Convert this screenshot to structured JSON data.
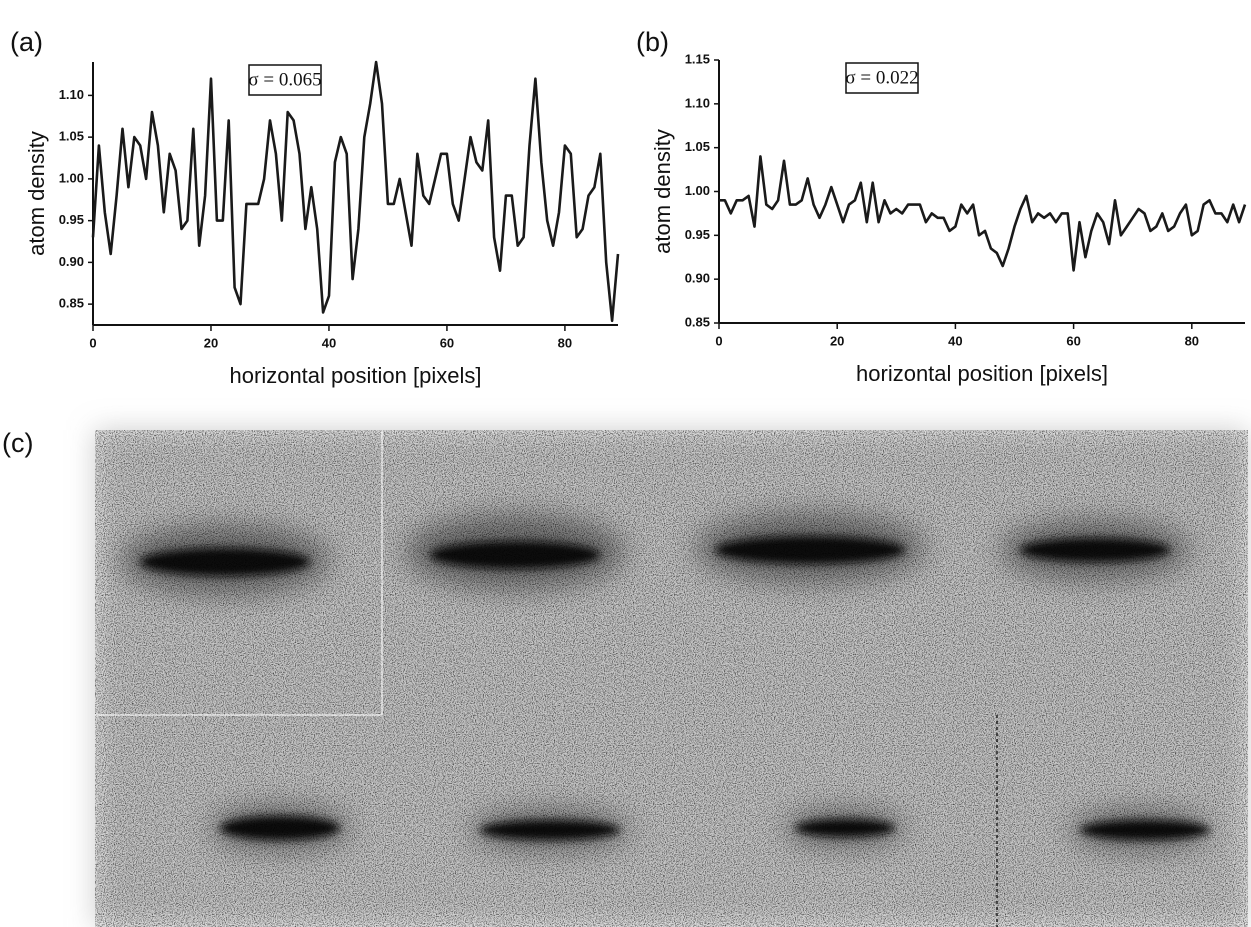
{
  "chart_data": [
    {
      "type": "line",
      "panel_label": "(a)",
      "annotation": "σ = 0.065",
      "ylabel": "atom density",
      "xlabel": "horizontal position [pixels]",
      "color": "#1a1a1a",
      "x": [
        0,
        1,
        2,
        3,
        4,
        5,
        6,
        7,
        8,
        9,
        10,
        11,
        12,
        13,
        14,
        15,
        16,
        17,
        18,
        19,
        20,
        21,
        22,
        23,
        24,
        25,
        26,
        27,
        28,
        29,
        30,
        31,
        32,
        33,
        34,
        35,
        36,
        37,
        38,
        39,
        40,
        41,
        42,
        43,
        44,
        45,
        46,
        47,
        48,
        49,
        50,
        51,
        52,
        53,
        54,
        55,
        56,
        57,
        58,
        59,
        60,
        61,
        62,
        63,
        64,
        65,
        66,
        67,
        68,
        69,
        70,
        71,
        72,
        73,
        74,
        75,
        76,
        77,
        78,
        79,
        80,
        81,
        82,
        83,
        84,
        85,
        86,
        87,
        88,
        89
      ],
      "values": [
        0.93,
        1.04,
        0.96,
        0.91,
        0.98,
        1.06,
        0.99,
        1.05,
        1.04,
        1.0,
        1.08,
        1.04,
        0.96,
        1.03,
        1.01,
        0.94,
        0.95,
        1.06,
        0.92,
        0.98,
        1.12,
        0.95,
        0.95,
        1.07,
        0.87,
        0.85,
        0.97,
        0.97,
        0.97,
        1.0,
        1.07,
        1.03,
        0.95,
        1.08,
        1.07,
        1.03,
        0.94,
        0.99,
        0.94,
        0.84,
        0.86,
        1.02,
        1.05,
        1.03,
        0.88,
        0.94,
        1.05,
        1.09,
        1.14,
        1.09,
        0.97,
        0.97,
        1.0,
        0.96,
        0.92,
        1.03,
        0.98,
        0.97,
        1.0,
        1.03,
        1.03,
        0.97,
        0.95,
        1.0,
        1.05,
        1.02,
        1.01,
        1.07,
        0.93,
        0.89,
        0.98,
        0.98,
        0.92,
        0.93,
        1.04,
        1.12,
        1.02,
        0.95,
        0.92,
        0.96,
        1.04,
        1.03,
        0.93,
        0.94,
        0.98,
        0.99,
        1.03,
        0.9,
        0.83,
        0.91
      ],
      "xlim": [
        0,
        89
      ],
      "xticks": [
        0,
        20,
        40,
        60,
        80
      ],
      "ylim": [
        0.825,
        1.14
      ],
      "yticks": [
        0.85,
        {
          "value": 0.9,
          "label": "0.90"
        },
        0.95,
        {
          "value": 1.0,
          "label": "1.00"
        },
        1.05,
        {
          "value": 1.1,
          "label": "1.10"
        }
      ]
    },
    {
      "type": "line",
      "panel_label": "(b)",
      "annotation": "σ = 0.022",
      "ylabel": "atom density",
      "xlabel": "horizontal position [pixels]",
      "color": "#1a1a1a",
      "x": [
        0,
        1,
        2,
        3,
        4,
        5,
        6,
        7,
        8,
        9,
        10,
        11,
        12,
        13,
        14,
        15,
        16,
        17,
        18,
        19,
        20,
        21,
        22,
        23,
        24,
        25,
        26,
        27,
        28,
        29,
        30,
        31,
        32,
        33,
        34,
        35,
        36,
        37,
        38,
        39,
        40,
        41,
        42,
        43,
        44,
        45,
        46,
        47,
        48,
        49,
        50,
        51,
        52,
        53,
        54,
        55,
        56,
        57,
        58,
        59,
        60,
        61,
        62,
        63,
        64,
        65,
        66,
        67,
        68,
        69,
        70,
        71,
        72,
        73,
        74,
        75,
        76,
        77,
        78,
        79,
        80,
        81,
        82,
        83,
        84,
        85,
        86,
        87,
        88,
        89
      ],
      "values": [
        0.99,
        0.99,
        0.975,
        0.99,
        0.99,
        0.995,
        0.96,
        1.04,
        0.985,
        0.98,
        0.99,
        1.035,
        0.985,
        0.985,
        0.99,
        1.015,
        0.985,
        0.97,
        0.985,
        1.005,
        0.985,
        0.965,
        0.985,
        0.99,
        1.01,
        0.965,
        1.01,
        0.965,
        0.99,
        0.975,
        0.98,
        0.975,
        0.985,
        0.985,
        0.985,
        0.965,
        0.975,
        0.97,
        0.97,
        0.955,
        0.96,
        0.985,
        0.975,
        0.985,
        0.95,
        0.955,
        0.935,
        0.93,
        0.915,
        0.935,
        0.96,
        0.98,
        0.995,
        0.965,
        0.975,
        0.97,
        0.975,
        0.965,
        0.975,
        0.975,
        0.91,
        0.965,
        0.925,
        0.955,
        0.975,
        0.965,
        0.94,
        0.99,
        0.95,
        0.96,
        0.97,
        0.98,
        0.975,
        0.955,
        0.96,
        0.975,
        0.955,
        0.96,
        0.975,
        0.985,
        0.95,
        0.955,
        0.985,
        0.99,
        0.975,
        0.975,
        0.965,
        0.985,
        0.965,
        0.985
      ],
      "xlim": [
        0,
        89
      ],
      "xticks": [
        0,
        20,
        40,
        60,
        80
      ],
      "ylim": [
        0.85,
        1.15
      ],
      "yticks": [
        0.85,
        {
          "value": 0.9,
          "label": "0.90"
        },
        0.95,
        {
          "value": 1.0,
          "label": "1.00"
        },
        1.05,
        {
          "value": 1.1,
          "label": "1.10"
        },
        1.15
      ]
    }
  ],
  "panel_c": {
    "label": "(c)"
  }
}
